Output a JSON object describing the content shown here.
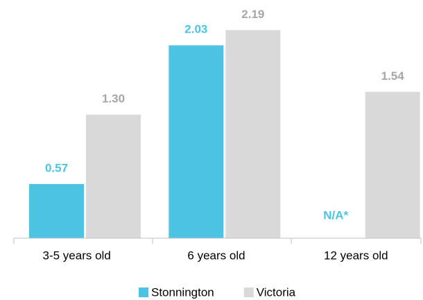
{
  "chart_data": {
    "type": "bar",
    "categories": [
      "3-5 years old",
      "6 years old",
      "12 years old"
    ],
    "series": [
      {
        "name": "Stonnington",
        "color": "#4dc3e3",
        "label_color": "#4dc3e3",
        "values": [
          0.57,
          2.03,
          null
        ],
        "value_labels": [
          "0.57",
          "2.03",
          "N/A*"
        ]
      },
      {
        "name": "Victoria",
        "color": "#d9d9d9",
        "label_color": "#a6a6a6",
        "values": [
          1.3,
          2.19,
          1.54
        ],
        "value_labels": [
          "1.30",
          "2.19",
          "1.54"
        ]
      }
    ],
    "ylim": [
      0,
      2.2
    ],
    "grid": false,
    "legend": "bottom"
  }
}
